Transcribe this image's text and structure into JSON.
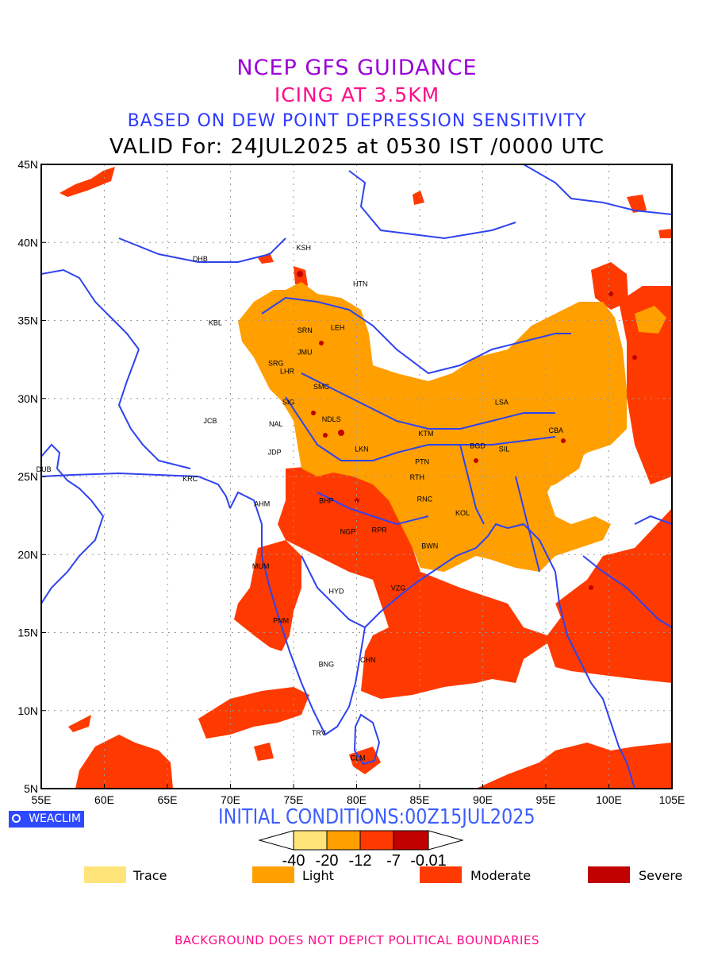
{
  "titles": {
    "line1": "NCEP GFS GUIDANCE",
    "line2": "ICING AT 3.5KM",
    "line3": "BASED ON DEW POINT DEPRESSION SENSITIVITY",
    "line4": "VALID For: 24JUL2025 at 0530 IST /0000 UTC"
  },
  "map": {
    "lon_ticks": [
      "55E",
      "60E",
      "65E",
      "70E",
      "75E",
      "80E",
      "85E",
      "90E",
      "95E",
      "100E",
      "105E"
    ],
    "lat_ticks": [
      "5N",
      "10N",
      "15N",
      "20N",
      "25N",
      "30N",
      "35N",
      "40N",
      "45N"
    ],
    "stations": [
      {
        "id": "KSH",
        "lon": 75.8,
        "lat": 39.5
      },
      {
        "id": "DHB",
        "lon": 67.6,
        "lat": 38.8
      },
      {
        "id": "HTN",
        "lon": 80.3,
        "lat": 37.2
      },
      {
        "id": "KBL",
        "lon": 68.8,
        "lat": 34.7
      },
      {
        "id": "SRN",
        "lon": 75.9,
        "lat": 34.2
      },
      {
        "id": "LEH",
        "lon": 78.5,
        "lat": 34.4
      },
      {
        "id": "JMU",
        "lon": 75.9,
        "lat": 32.8
      },
      {
        "id": "SRG",
        "lon": 73.6,
        "lat": 32.1
      },
      {
        "id": "LHR",
        "lon": 74.5,
        "lat": 31.6
      },
      {
        "id": "SMC",
        "lon": 77.2,
        "lat": 30.6
      },
      {
        "id": "SIG",
        "lon": 74.6,
        "lat": 29.6
      },
      {
        "id": "LSA",
        "lon": 91.5,
        "lat": 29.6
      },
      {
        "id": "JCB",
        "lon": 68.4,
        "lat": 28.4
      },
      {
        "id": "NAL",
        "lon": 73.6,
        "lat": 28.2
      },
      {
        "id": "NDLS",
        "lon": 78.0,
        "lat": 28.5
      },
      {
        "id": "KTM",
        "lon": 85.5,
        "lat": 27.6
      },
      {
        "id": "CBA",
        "lon": 95.8,
        "lat": 27.8
      },
      {
        "id": "BGD",
        "lon": 89.6,
        "lat": 26.8
      },
      {
        "id": "SIL",
        "lon": 91.7,
        "lat": 26.6
      },
      {
        "id": "JDP",
        "lon": 73.5,
        "lat": 26.4
      },
      {
        "id": "LKN",
        "lon": 80.4,
        "lat": 26.6
      },
      {
        "id": "PTN",
        "lon": 85.2,
        "lat": 25.8
      },
      {
        "id": "DUB",
        "lon": 55.2,
        "lat": 25.3
      },
      {
        "id": "RTH",
        "lon": 84.8,
        "lat": 24.8
      },
      {
        "id": "KRC",
        "lon": 66.8,
        "lat": 24.7
      },
      {
        "id": "BHP",
        "lon": 77.6,
        "lat": 23.3
      },
      {
        "id": "AHM",
        "lon": 72.5,
        "lat": 23.1
      },
      {
        "id": "RNC",
        "lon": 85.4,
        "lat": 23.4
      },
      {
        "id": "KOL",
        "lon": 88.4,
        "lat": 22.5
      },
      {
        "id": "NGP",
        "lon": 79.3,
        "lat": 21.3
      },
      {
        "id": "RPR",
        "lon": 81.8,
        "lat": 21.4
      },
      {
        "id": "BWN",
        "lon": 85.8,
        "lat": 20.4
      },
      {
        "id": "MUM",
        "lon": 72.4,
        "lat": 19.1
      },
      {
        "id": "HYD",
        "lon": 78.4,
        "lat": 17.5
      },
      {
        "id": "VZG",
        "lon": 83.3,
        "lat": 17.7
      },
      {
        "id": "PNM",
        "lon": 74.0,
        "lat": 15.6
      },
      {
        "id": "CHN",
        "lon": 80.9,
        "lat": 13.1
      },
      {
        "id": "BNG",
        "lon": 77.6,
        "lat": 12.8
      },
      {
        "id": "TRV",
        "lon": 77.0,
        "lat": 8.4
      },
      {
        "id": "CLM",
        "lon": 80.1,
        "lat": 6.8
      }
    ]
  },
  "legend": {
    "initial_conditions": "INITIAL CONDITIONS:00Z15JUL2025",
    "scale_labels": [
      "-40",
      "-20",
      "-12",
      "-7",
      "-0.01"
    ],
    "colors": {
      "trace": "#ffe479",
      "light": "#ff9f00",
      "moderate": "#ff3a00",
      "severe": "#c10000"
    },
    "categories": [
      {
        "label": "Trace",
        "color": "#ffe479"
      },
      {
        "label": "Light",
        "color": "#ff9f00"
      },
      {
        "label": "Moderate",
        "color": "#ff3a00"
      },
      {
        "label": "Severe",
        "color": "#c10000"
      }
    ]
  },
  "brand": "WEACLIM",
  "footer": "BACKGROUND DOES NOT DEPICT POLITICAL BOUNDARIES"
}
